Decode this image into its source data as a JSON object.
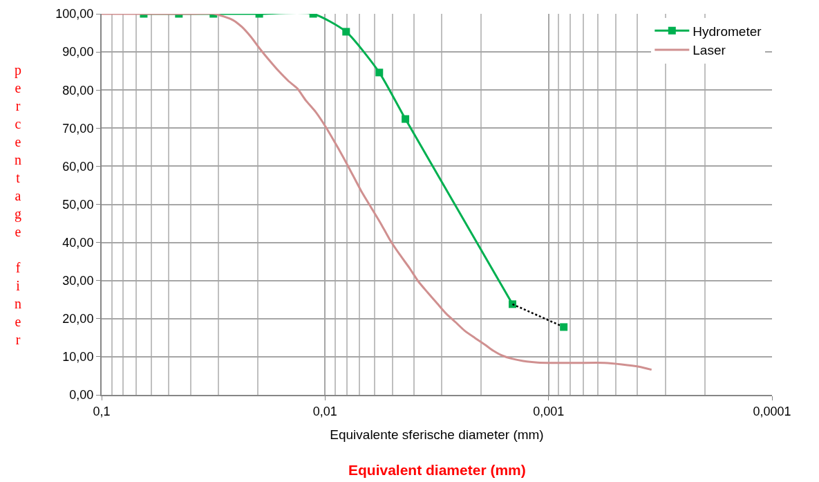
{
  "chart_data": {
    "type": "line",
    "xlabel": "Equivalente sferische diameter (mm)",
    "ylabel": "percentage finer",
    "annotations": [
      "Equivalent diameter (mm)"
    ],
    "log": "x",
    "grid": true,
    "legend": "top right",
    "xlim": [
      0.1,
      0.0001
    ],
    "xticks": [
      {
        "value": 0.1,
        "label": "0,1"
      },
      {
        "value": 0.01,
        "label": "0,01"
      },
      {
        "value": 0.001,
        "label": "0,001"
      },
      {
        "value": 0.0001,
        "label": "0,0001"
      }
    ],
    "ylim": [
      0,
      100
    ],
    "yticks": [
      {
        "value": 0,
        "label": "0,00"
      },
      {
        "value": 10,
        "label": "10,00"
      },
      {
        "value": 20,
        "label": "20,00"
      },
      {
        "value": 30,
        "label": "30,00"
      },
      {
        "value": 40,
        "label": "40,00"
      },
      {
        "value": 50,
        "label": "50,00"
      },
      {
        "value": 60,
        "label": "60,00"
      },
      {
        "value": 70,
        "label": "70,00"
      },
      {
        "value": 80,
        "label": "80,00"
      },
      {
        "value": 90,
        "label": "90,00"
      },
      {
        "value": 100,
        "label": "100,00"
      }
    ],
    "series": [
      {
        "name": "Hydrometer",
        "color": "#00b050",
        "marker": "square",
        "line_style": "solid",
        "x": [
          0.0648,
          0.0451,
          0.0316,
          0.0197,
          0.0113,
          0.00805,
          0.00572,
          0.00437,
          0.00145
        ],
        "values": [
          100,
          100,
          100,
          100,
          100,
          95.3,
          84.6,
          72.4,
          23.8
        ]
      },
      {
        "color": "#000000",
        "marker": "none",
        "line_style": "dotted",
        "x": [
          0.00145,
          0.000855
        ],
        "values": [
          23.8,
          17.8
        ]
      },
      {
        "type": "scatter",
        "color": "#00b050",
        "marker": "square",
        "x": [
          0.000855
        ],
        "values": [
          17.8
        ]
      },
      {
        "name": "Laser",
        "color": "#d09090",
        "marker": "none",
        "line_style": "solid",
        "x": [
          0.1,
          0.0791,
          0.0625,
          0.0494,
          0.0391,
          0.0313,
          0.0259,
          0.0236,
          0.0215,
          0.0195,
          0.0177,
          0.0162,
          0.0146,
          0.0133,
          0.0122,
          0.011,
          0.01,
          0.00915,
          0.00828,
          0.00755,
          0.00689,
          0.00621,
          0.00561,
          0.00514,
          0.00463,
          0.00418,
          0.00384,
          0.00348,
          0.00315,
          0.00287,
          0.00261,
          0.00237,
          0.00213,
          0.00192,
          0.00177,
          0.00161,
          0.00146,
          0.0013,
          0.00112,
          0.000958,
          0.000741,
          0.000562,
          0.00047,
          0.000394,
          0.000346
        ],
        "values": [
          100,
          100,
          100,
          100,
          100,
          100,
          98.4,
          96.6,
          94.0,
          90.7,
          87.7,
          85.1,
          82.4,
          80.4,
          77.3,
          74.2,
          70.6,
          66.8,
          62.3,
          57.9,
          53.5,
          49.1,
          44.8,
          40.8,
          36.8,
          33.2,
          29.9,
          26.9,
          24.0,
          21.3,
          19.1,
          16.8,
          14.9,
          13.1,
          11.6,
          10.3,
          9.5,
          8.9,
          8.5,
          8.4,
          8.4,
          8.4,
          8.0,
          7.4,
          6.6
        ]
      }
    ]
  }
}
